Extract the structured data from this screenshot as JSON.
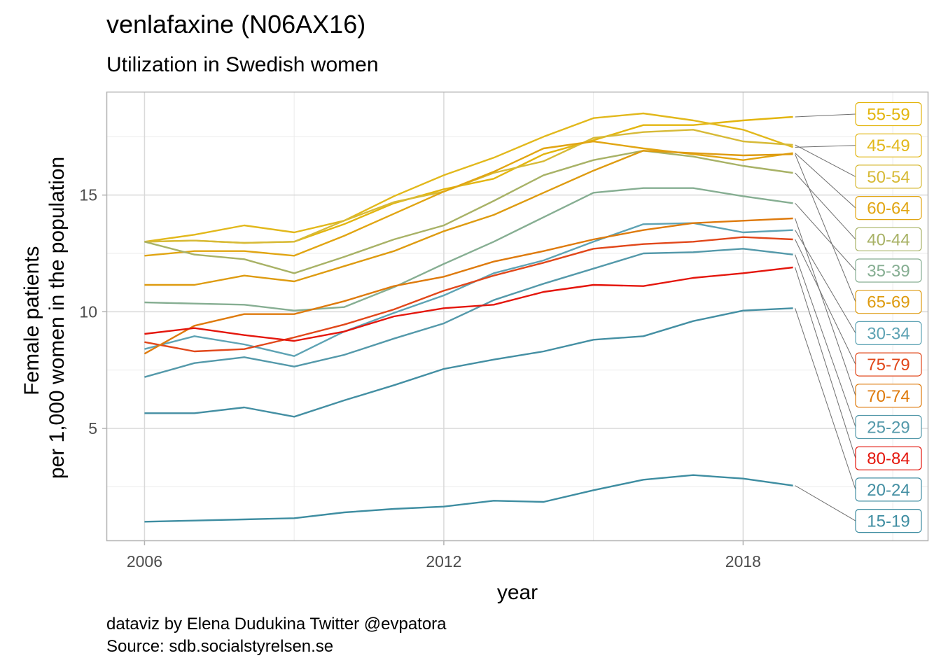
{
  "title": "venlafaxine (N06AX16)",
  "subtitle": "Utilization in Swedish women",
  "caption": [
    "dataviz by Elena Dudukina Twitter @evpatora",
    "Source: sdb.socialstyrelsen.se"
  ],
  "chart_data": {
    "type": "line",
    "xlabel": "year",
    "ylabel": [
      "Female patients",
      "per 1,000 women in the population"
    ],
    "x": [
      2006,
      2007,
      2008,
      2009,
      2010,
      2011,
      2012,
      2013,
      2014,
      2015,
      2016,
      2017,
      2018,
      2019
    ],
    "x_ticks": [
      "2006",
      "2012",
      "2018"
    ],
    "y_ticks": [
      "5",
      "10",
      "15"
    ],
    "xlim": [
      2005.25,
      2021.7
    ],
    "ylim": [
      0.2,
      19.4
    ],
    "grid": true,
    "legend": "direct labels right",
    "series": [
      {
        "name": "55-59",
        "color": "#E3B50E",
        "values": [
          13.0,
          13.05,
          12.95,
          13.0,
          13.75,
          14.65,
          15.25,
          15.7,
          16.75,
          17.35,
          18.0,
          18.0,
          18.2,
          18.35
        ]
      },
      {
        "name": "45-49",
        "color": "#E2B81B",
        "values": [
          13.0,
          13.3,
          13.7,
          13.4,
          13.9,
          14.95,
          15.85,
          16.6,
          17.5,
          18.3,
          18.5,
          18.2,
          17.8,
          17.05
        ]
      },
      {
        "name": "50-54",
        "color": "#D7BA37",
        "values": [
          13.0,
          13.05,
          12.95,
          13.0,
          13.9,
          14.7,
          15.15,
          15.95,
          16.45,
          17.45,
          17.7,
          17.8,
          17.3,
          17.15
        ]
      },
      {
        "name": "60-64",
        "color": "#E1A512",
        "values": [
          12.4,
          12.6,
          12.6,
          12.4,
          13.25,
          14.2,
          15.15,
          16.0,
          17.0,
          17.3,
          17.0,
          16.75,
          16.5,
          16.8
        ]
      },
      {
        "name": "40-44",
        "color": "#A8B266",
        "values": [
          13.0,
          12.45,
          12.25,
          11.65,
          12.35,
          13.1,
          13.7,
          14.75,
          15.85,
          16.5,
          16.9,
          16.65,
          16.25,
          15.95
        ]
      },
      {
        "name": "35-39",
        "color": "#86AE92",
        "values": [
          10.4,
          10.35,
          10.3,
          10.05,
          10.2,
          11.05,
          12.05,
          13.0,
          14.05,
          15.1,
          15.3,
          15.3,
          14.95,
          14.65
        ]
      },
      {
        "name": "65-69",
        "color": "#DE9B10",
        "values": [
          11.15,
          11.15,
          11.55,
          11.3,
          11.95,
          12.6,
          13.45,
          14.15,
          15.1,
          16.05,
          16.9,
          16.8,
          16.7,
          16.75
        ]
      },
      {
        "name": "30-34",
        "color": "#5EA3B4",
        "values": [
          8.4,
          8.95,
          8.6,
          8.1,
          9.15,
          9.95,
          10.7,
          11.65,
          12.2,
          13.0,
          13.75,
          13.8,
          13.4,
          13.5
        ]
      },
      {
        "name": "75-79",
        "color": "#E1471A",
        "values": [
          8.7,
          8.3,
          8.4,
          8.9,
          9.45,
          10.1,
          10.9,
          11.55,
          12.1,
          12.7,
          12.9,
          13.0,
          13.2,
          13.1
        ]
      },
      {
        "name": "70-74",
        "color": "#DE7A0C",
        "values": [
          8.2,
          9.4,
          9.9,
          9.9,
          10.45,
          11.1,
          11.5,
          12.15,
          12.6,
          13.1,
          13.5,
          13.8,
          13.9,
          14.0
        ]
      },
      {
        "name": "25-29",
        "color": "#5499AA",
        "values": [
          7.2,
          7.8,
          8.05,
          7.65,
          8.15,
          8.85,
          9.5,
          10.5,
          11.2,
          11.85,
          12.5,
          12.55,
          12.7,
          12.45
        ]
      },
      {
        "name": "80-84",
        "color": "#E4160C",
        "values": [
          9.05,
          9.3,
          9.0,
          8.75,
          9.15,
          9.8,
          10.15,
          10.3,
          10.85,
          11.15,
          11.1,
          11.45,
          11.65,
          11.9
        ]
      },
      {
        "name": "20-24",
        "color": "#448FA3",
        "values": [
          5.65,
          5.65,
          5.9,
          5.5,
          6.2,
          6.85,
          7.55,
          7.95,
          8.3,
          8.8,
          8.95,
          9.6,
          10.05,
          10.15
        ]
      },
      {
        "name": "15-19",
        "color": "#3E8DA1",
        "values": [
          1.0,
          1.05,
          1.1,
          1.15,
          1.4,
          1.55,
          1.65,
          1.9,
          1.85,
          2.35,
          2.8,
          3.0,
          2.85,
          2.55
        ]
      }
    ]
  }
}
